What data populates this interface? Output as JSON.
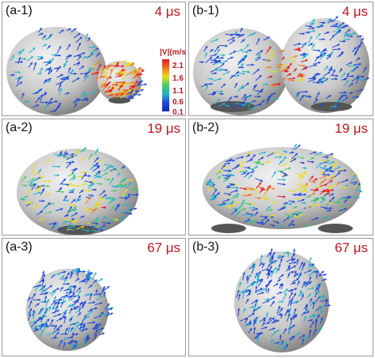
{
  "panels": [
    {
      "id": "a-1",
      "label": "(a-1)",
      "time": "4 μs"
    },
    {
      "id": "b-1",
      "label": "(b-1)",
      "time": "4 μs"
    },
    {
      "id": "a-2",
      "label": "(a-2)",
      "time": "19 μs"
    },
    {
      "id": "b-2",
      "label": "(b-2)",
      "time": "19 μs"
    },
    {
      "id": "a-3",
      "label": "(a-3)",
      "time": "67 μs"
    },
    {
      "id": "b-3",
      "label": "(b-3)",
      "time": "67 μs"
    }
  ],
  "colorbar": {
    "title": "|V|(m/s",
    "ticks": [
      "2.1",
      "1.6",
      "1.1",
      "0.6",
      "0.1"
    ],
    "colors": [
      "#e6141e",
      "#f0781e",
      "#e6dc1e",
      "#46c864",
      "#1eb4c8",
      "#1e46dc"
    ]
  }
}
